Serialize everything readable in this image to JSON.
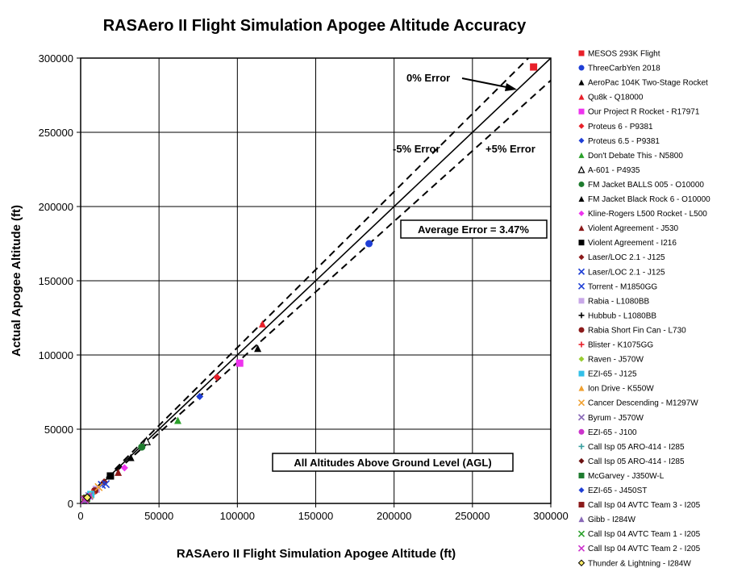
{
  "chart_data": {
    "type": "scatter",
    "title": "RASAero II Flight Simulation Apogee Altitude Accuracy",
    "xlabel": "RASAero II Flight Simulation Apogee Altitude (ft)",
    "ylabel": "Actual Apogee Altitude (ft)",
    "xlim": [
      0,
      300000
    ],
    "ylim": [
      0,
      300000
    ],
    "x_ticks": [
      "0",
      "50000",
      "100000",
      "150000",
      "200000",
      "250000",
      "300000"
    ],
    "y_ticks": [
      "0",
      "50000",
      "100000",
      "150000",
      "200000",
      "250000",
      "300000"
    ],
    "grid": true,
    "legend_position": "right",
    "reference_lines": [
      {
        "label": "0% Error",
        "slope": 1.0,
        "style": "solid"
      },
      {
        "label": "-5% Error",
        "slope": 1.05,
        "style": "dashed"
      },
      {
        "label": "+5% Error",
        "slope": 0.95,
        "style": "dashed"
      }
    ],
    "annotations": {
      "zero_error": "0% Error",
      "minus_five": "-5% Error",
      "plus_five": "+5% Error",
      "average_error": "Average Error = 3.47%",
      "agl_note": "All Altitudes Above Ground Level (AGL)"
    },
    "series": [
      {
        "name": "MESOS 293K Flight",
        "marker": "square",
        "color": "#e8202a",
        "x": [
          289000
        ],
        "y": [
          294000
        ]
      },
      {
        "name": "ThreeCarbYen 2018",
        "marker": "circle",
        "color": "#1f3fd6",
        "x": [
          184000
        ],
        "y": [
          175000
        ]
      },
      {
        "name": "AeroPac 104K Two-Stage Rocket",
        "marker": "triangle",
        "color": "#000000",
        "x": [
          113000
        ],
        "y": [
          104500
        ]
      },
      {
        "name": "Qu8k - Q18000",
        "marker": "triangle",
        "color": "#e8202a",
        "x": [
          116000
        ],
        "y": [
          121000
        ]
      },
      {
        "name": "Our Project R Rocket - R17971",
        "marker": "square",
        "color": "#ee33ee",
        "x": [
          101500
        ],
        "y": [
          94500
        ]
      },
      {
        "name": "Proteus 6 - P9381",
        "marker": "diamond",
        "color": "#e8202a",
        "x": [
          87000
        ],
        "y": [
          85000
        ]
      },
      {
        "name": "Proteus 6.5 - P9381",
        "marker": "diamond",
        "color": "#1f3fd6",
        "x": [
          76000
        ],
        "y": [
          72000
        ]
      },
      {
        "name": "Don't Debate This - N5800",
        "marker": "triangle",
        "color": "#2aa02a",
        "x": [
          62000
        ],
        "y": [
          56000
        ]
      },
      {
        "name": "A-601 - P4935",
        "marker": "triangle-open",
        "color": "#000000",
        "x": [
          42000
        ],
        "y": [
          42000
        ]
      },
      {
        "name": "FM Jacket BALLS 005 - O10000",
        "marker": "circle",
        "color": "#1e7b2e",
        "x": [
          39000
        ],
        "y": [
          38000
        ]
      },
      {
        "name": "FM Jacket Black Rock 6 - O10000",
        "marker": "triangle",
        "color": "#000000",
        "x": [
          32000
        ],
        "y": [
          31000
        ]
      },
      {
        "name": "Kline-Rogers L500 Rocket - L500",
        "marker": "diamond",
        "color": "#ee33ee",
        "x": [
          28000
        ],
        "y": [
          24000
        ]
      },
      {
        "name": "Violent Agreement - J530",
        "marker": "triangle",
        "color": "#8b1a1a",
        "x": [
          24000
        ],
        "y": [
          21000
        ]
      },
      {
        "name": "Violent Agreement - I216",
        "marker": "square",
        "color": "#000000",
        "x": [
          19000
        ],
        "y": [
          18500
        ]
      },
      {
        "name": "Laser/LOC 2.1 - J125",
        "marker": "diamond",
        "color": "#8b1a1a",
        "x": [
          15000
        ],
        "y": [
          14500
        ]
      },
      {
        "name": "Laser/LOC 2.1 - J125",
        "marker": "x",
        "color": "#1f3fd6",
        "x": [
          13500
        ],
        "y": [
          12500
        ]
      },
      {
        "name": "Torrent - M1850GG",
        "marker": "x",
        "color": "#1f3fd6",
        "x": [
          16000
        ],
        "y": [
          13000
        ]
      },
      {
        "name": "Rabia - L1080BB",
        "marker": "square",
        "color": "#c8a8e8",
        "x": [
          10000
        ],
        "y": [
          9500
        ]
      },
      {
        "name": "Hubbub - L1080BB",
        "marker": "plus",
        "color": "#000000",
        "x": [
          8500
        ],
        "y": [
          8000
        ]
      },
      {
        "name": "Rabia Short Fin Can - L730",
        "marker": "circle",
        "color": "#8b1a1a",
        "x": [
          9000
        ],
        "y": [
          8500
        ]
      },
      {
        "name": "Blister - K1075GG",
        "marker": "plus",
        "color": "#e8202a",
        "x": [
          7500
        ],
        "y": [
          7000
        ]
      },
      {
        "name": "Raven - J570W",
        "marker": "diamond",
        "color": "#9acd32",
        "x": [
          7000
        ],
        "y": [
          6500
        ]
      },
      {
        "name": "EZI-65 - J125",
        "marker": "square",
        "color": "#33c0e8",
        "x": [
          6500
        ],
        "y": [
          6000
        ]
      },
      {
        "name": "Ion Drive - K550W",
        "marker": "triangle",
        "color": "#f0a030",
        "x": [
          6000
        ],
        "y": [
          5500
        ]
      },
      {
        "name": "Cancer Descending - M1297W",
        "marker": "x",
        "color": "#f0a030",
        "x": [
          11500
        ],
        "y": [
          11000
        ]
      },
      {
        "name": "Byrum - J570W",
        "marker": "x",
        "color": "#8a6ab8",
        "x": [
          5500
        ],
        "y": [
          5000
        ]
      },
      {
        "name": "EZI-65 - J100",
        "marker": "circle",
        "color": "#cc33cc",
        "x": [
          5000
        ],
        "y": [
          4500
        ]
      },
      {
        "name": "Call Isp 05 ARO-414 - I285",
        "marker": "plus",
        "color": "#3aa0a0",
        "x": [
          4500
        ],
        "y": [
          4200
        ]
      },
      {
        "name": "Call Isp 05 ARO-414 - I285",
        "marker": "diamond",
        "color": "#6b1010",
        "x": [
          4000
        ],
        "y": [
          3800
        ]
      },
      {
        "name": "McGarvey - J350W-L",
        "marker": "square",
        "color": "#1e7b2e",
        "x": [
          3800
        ],
        "y": [
          3500
        ]
      },
      {
        "name": "EZI-65 - J450ST",
        "marker": "diamond",
        "color": "#1f3fd6",
        "x": [
          3500
        ],
        "y": [
          3200
        ]
      },
      {
        "name": "Call Isp 04 AVTC Team 3 - I205",
        "marker": "square",
        "color": "#8b1a1a",
        "x": [
          3200
        ],
        "y": [
          3000
        ]
      },
      {
        "name": "Gibb - I284W",
        "marker": "triangle",
        "color": "#8a6ab8",
        "x": [
          3000
        ],
        "y": [
          2800
        ]
      },
      {
        "name": "Call Isp 04 AVTC Team 1 - I205",
        "marker": "x",
        "color": "#2aa02a",
        "x": [
          2800
        ],
        "y": [
          2600
        ]
      },
      {
        "name": "Call Isp 04 AVTC Team 2 - I205",
        "marker": "x",
        "color": "#cc33cc",
        "x": [
          2600
        ],
        "y": [
          2400
        ]
      },
      {
        "name": "Thunder & Lightning - I284W",
        "marker": "diamond-open",
        "color": "#c8a020",
        "x": [
          4200
        ],
        "y": [
          4000
        ]
      }
    ]
  }
}
